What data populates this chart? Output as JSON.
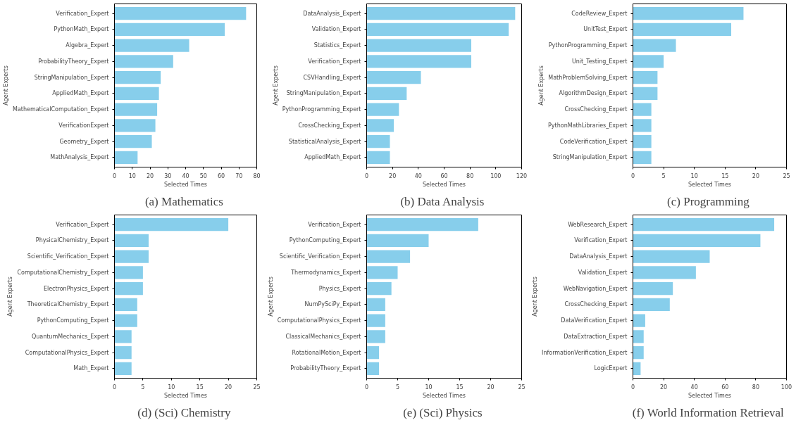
{
  "chart_data": [
    {
      "type": "bar",
      "orientation": "horizontal",
      "title": "(a)  Mathematics",
      "xlabel": "Selected Times",
      "ylabel": "Agent Experts",
      "color": "#87ceeb",
      "grid": false,
      "categories": [
        "Verification_Expert",
        "PythonMath_Expert",
        "Algebra_Expert",
        "ProbabilityTheory_Expert",
        "StringManipulation_Expert",
        "AppliedMath_Expert",
        "MathematicalComputation_Expert",
        "VerificationExpert",
        "Geometry_Expert",
        "MathAnalysis_Expert"
      ],
      "values": [
        74,
        62,
        42,
        33,
        26,
        25,
        24,
        23,
        21,
        13
      ],
      "xlim": [
        0,
        80
      ],
      "xticks": [
        0,
        10,
        20,
        30,
        40,
        50,
        60,
        70,
        80
      ]
    },
    {
      "type": "bar",
      "orientation": "horizontal",
      "title": "(b)  Data Analysis",
      "xlabel": "Selected Times",
      "ylabel": "Agent Experts",
      "color": "#87ceeb",
      "grid": false,
      "categories": [
        "DataAnalysis_Expert",
        "Validation_Expert",
        "Statistics_Expert",
        "Verification_Expert",
        "CSVHandling_Expert",
        "StringManipulation_Expert",
        "PythonProgramming_Expert",
        "CrossChecking_Expert",
        "StatisticalAnalysis_Expert",
        "AppliedMath_Expert"
      ],
      "values": [
        115,
        110,
        81,
        81,
        42,
        31,
        25,
        21,
        18,
        18
      ],
      "xlim": [
        0,
        120
      ],
      "xticks": [
        0,
        20,
        40,
        60,
        80,
        100,
        120
      ]
    },
    {
      "type": "bar",
      "orientation": "horizontal",
      "title": "(c)  Programming",
      "xlabel": "Selected Times",
      "ylabel": "Agent Experts",
      "color": "#87ceeb",
      "grid": false,
      "categories": [
        "CodeReview_Expert",
        "UnitTest_Expert",
        "PythonProgramming_Expert",
        "Unit_Testing_Expert",
        "MathProblemSolving_Expert",
        "AlgorithmDesign_Expert",
        "CrossChecking_Expert",
        "PythonMathLibraries_Expert",
        "CodeVerification_Expert",
        "StringManipulation_Expert"
      ],
      "values": [
        18,
        16,
        7,
        5,
        4,
        4,
        3,
        3,
        3,
        3
      ],
      "xlim": [
        0,
        25
      ],
      "xticks": [
        0,
        5,
        10,
        15,
        20,
        25
      ]
    },
    {
      "type": "bar",
      "orientation": "horizontal",
      "title": "(d)  (Sci) Chemistry",
      "xlabel": "Selected Times",
      "ylabel": "Agent Experts",
      "color": "#87ceeb",
      "grid": false,
      "categories": [
        "Verification_Expert",
        "PhysicalChemistry_Expert",
        "Scientific_Verification_Expert",
        "ComputationalChemistry_Expert",
        "ElectronPhysics_Expert",
        "TheoreticalChemistry_Expert",
        "PythonComputing_Expert",
        "QuantumMechanics_Expert",
        "ComputationalPhysics_Expert",
        "Math_Expert"
      ],
      "values": [
        20,
        6,
        6,
        5,
        5,
        4,
        4,
        3,
        3,
        3
      ],
      "xlim": [
        0,
        25
      ],
      "xticks": [
        0,
        5,
        10,
        15,
        20,
        25
      ]
    },
    {
      "type": "bar",
      "orientation": "horizontal",
      "title": "(e)  (Sci) Physics",
      "xlabel": "Selected Times",
      "ylabel": "Agent Experts",
      "color": "#87ceeb",
      "grid": false,
      "categories": [
        "Verification_Expert",
        "PythonComputing_Expert",
        "Scientific_Verification_Expert",
        "Thermodynamics_Expert",
        "Physics_Expert",
        "NumPySciPy_Expert",
        "ComputationalPhysics_Expert",
        "ClassicalMechanics_Expert",
        "RotationalMotion_Expert",
        "ProbabilityTheory_Expert"
      ],
      "values": [
        18,
        10,
        7,
        5,
        4,
        3,
        3,
        3,
        2,
        2
      ],
      "xlim": [
        0,
        25
      ],
      "xticks": [
        0,
        5,
        10,
        15,
        20,
        25
      ]
    },
    {
      "type": "bar",
      "orientation": "horizontal",
      "title": "(f)  World Information Retrieval",
      "xlabel": "Selected Times",
      "ylabel": "Agent Experts",
      "color": "#87ceeb",
      "grid": false,
      "categories": [
        "WebResearch_Expert",
        "Verification_Expert",
        "DataAnalysis_Expert",
        "Validation_Expert",
        "WebNavigation_Expert",
        "CrossChecking_Expert",
        "DataVerification_Expert",
        "DataExtraction_Expert",
        "InformationVerification_Expert",
        "LogicExpert"
      ],
      "values": [
        92,
        83,
        50,
        41,
        26,
        24,
        8,
        7,
        7,
        5
      ],
      "xlim": [
        0,
        100
      ],
      "xticks": [
        0,
        20,
        40,
        60,
        80,
        100
      ]
    }
  ]
}
